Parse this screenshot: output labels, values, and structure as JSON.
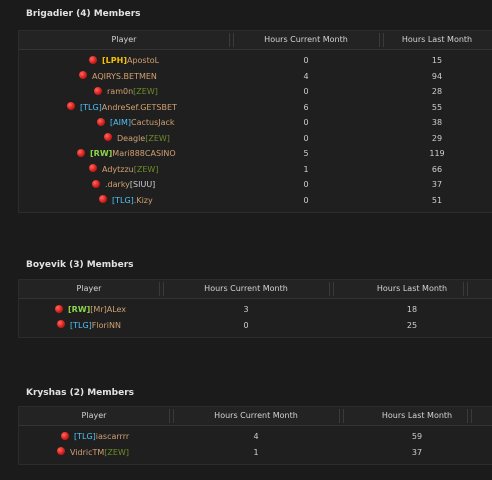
{
  "colors": {
    "tag_yellow": "#f2c200",
    "tag_cyan": "#4fc3f7",
    "tag_green": "#8bd44a",
    "tag_olive": "#6d8b2c",
    "name_brown": "#d2a072",
    "name_grey": "#cfcfcf",
    "offline_dot": "#d61e1e"
  },
  "groups": [
    {
      "title": "Brigadier (4) Members",
      "headers": [
        "Player",
        "Hours Current Month",
        "Hours Last Month"
      ],
      "rows": [
        {
          "parts": [
            {
              "text": "[LPH]",
              "color": "#f2c200",
              "bold": true
            },
            {
              "text": "ApostoL",
              "color": "#d2a072"
            }
          ],
          "current": "0",
          "last": "15"
        },
        {
          "parts": [
            {
              "text": "AQIRYS.BETMEN",
              "color": "#d2a072"
            }
          ],
          "current": "4",
          "last": "94"
        },
        {
          "parts": [
            {
              "text": "ram0n",
              "color": "#d2a072"
            },
            {
              "text": "[ZEW]",
              "color": "#6d8b2c"
            }
          ],
          "current": "0",
          "last": "28"
        },
        {
          "parts": [
            {
              "text": "[TLG]",
              "color": "#4fc3f7"
            },
            {
              "text": "AndreSef.GETSBET",
              "color": "#d2a072"
            }
          ],
          "current": "6",
          "last": "55"
        },
        {
          "parts": [
            {
              "text": "[AIM]",
              "color": "#4fc3f7"
            },
            {
              "text": "CactusJack",
              "color": "#d2a072"
            }
          ],
          "current": "0",
          "last": "38"
        },
        {
          "parts": [
            {
              "text": "Deagle",
              "color": "#d2a072"
            },
            {
              "text": "[ZEW]",
              "color": "#6d8b2c"
            }
          ],
          "current": "0",
          "last": "29"
        },
        {
          "parts": [
            {
              "text": "[RW]",
              "color": "#8bd44a",
              "bold": true
            },
            {
              "text": "Mari888CASINO",
              "color": "#d2a072"
            }
          ],
          "current": "5",
          "last": "119"
        },
        {
          "parts": [
            {
              "text": "Adytzzu",
              "color": "#d2a072"
            },
            {
              "text": "[ZEW]",
              "color": "#6d8b2c"
            }
          ],
          "current": "1",
          "last": "66"
        },
        {
          "parts": [
            {
              "text": ".darky",
              "color": "#d2a072"
            },
            {
              "text": "[SIUU]",
              "color": "#cfcfcf"
            }
          ],
          "current": "0",
          "last": "37"
        },
        {
          "parts": [
            {
              "text": "[TLG]",
              "color": "#4fc3f7"
            },
            {
              "text": ".Kizy",
              "color": "#d2a072"
            }
          ],
          "current": "0",
          "last": "51"
        }
      ]
    },
    {
      "title": "Boyevik (3) Members",
      "headers": [
        "Player",
        "Hours Current Month",
        "Hours Last Month"
      ],
      "rows": [
        {
          "parts": [
            {
              "text": "[RW]",
              "color": "#8bd44a",
              "bold": true
            },
            {
              "text": "[Mr]ALex",
              "color": "#d2a072"
            }
          ],
          "current": "3",
          "last": "18"
        },
        {
          "parts": [
            {
              "text": "[TLG]",
              "color": "#4fc3f7"
            },
            {
              "text": "FloriNN",
              "color": "#d2a072"
            }
          ],
          "current": "0",
          "last": "25"
        }
      ]
    },
    {
      "title": "Kryshas (2) Members",
      "headers": [
        "Player",
        "Hours Current Month",
        "Hours Last Month"
      ],
      "rows": [
        {
          "parts": [
            {
              "text": "[TLG]",
              "color": "#4fc3f7"
            },
            {
              "text": "iascarrrr",
              "color": "#d2a072"
            }
          ],
          "current": "4",
          "last": "59"
        },
        {
          "parts": [
            {
              "text": "VidricTM",
              "color": "#d2a072"
            },
            {
              "text": "[ZEW]",
              "color": "#6d8b2c"
            }
          ],
          "current": "1",
          "last": "37"
        }
      ]
    }
  ]
}
